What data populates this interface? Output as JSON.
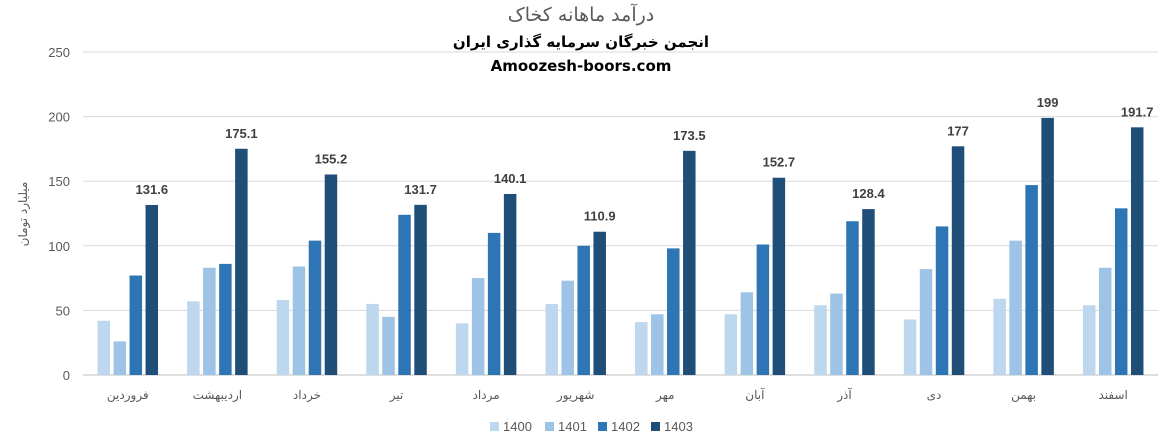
{
  "chart_data": {
    "type": "bar",
    "title": "درآمد ماهانه کخاک",
    "subtitle": "انجمن خبرگان سرمایه گذاری ایران",
    "subtitle2": "Amoozesh-boors.com",
    "ylabel": "میلیارد تومان",
    "xlabel": "",
    "ylim": [
      0,
      250
    ],
    "yticks": [
      0,
      50,
      100,
      150,
      200,
      250
    ],
    "grid": true,
    "legend": "bottom",
    "categories": [
      "فروردین",
      "اردیبهشت",
      "خرداد",
      "تیر",
      "مرداد",
      "شهریور",
      "مهر",
      "آبان",
      "آذر",
      "دی",
      "بهمن",
      "اسفند"
    ],
    "series": [
      {
        "name": "1400",
        "color": "#bdd7ee",
        "values": [
          42,
          57,
          58,
          55,
          40,
          55,
          41,
          47,
          54,
          43,
          59,
          54
        ]
      },
      {
        "name": "1401",
        "color": "#9dc3e6",
        "values": [
          26,
          83,
          84,
          45,
          75,
          73,
          47,
          64,
          63,
          82,
          104,
          83
        ]
      },
      {
        "name": "1402",
        "color": "#2e75b6",
        "values": [
          77,
          86,
          104,
          124,
          110,
          100,
          98,
          101,
          119,
          115,
          147,
          129
        ]
      },
      {
        "name": "1403",
        "color": "#1f4e79",
        "values": [
          131.6,
          175.1,
          155.2,
          131.7,
          140.1,
          110.9,
          173.5,
          152.7,
          128.4,
          177,
          199,
          191.7
        ]
      }
    ],
    "data_labels": [
      "131.6",
      "175.1",
      "155.2",
      "131.7",
      "140.1",
      "110.9",
      "173.5",
      "152.7",
      "128.4",
      "177",
      "199",
      "191.7"
    ]
  }
}
